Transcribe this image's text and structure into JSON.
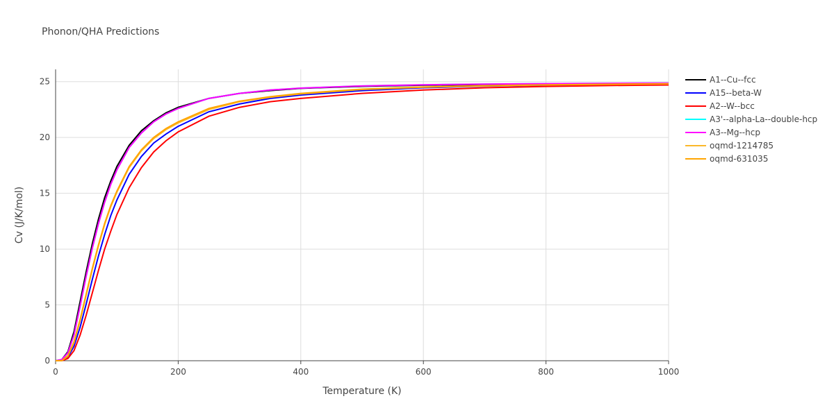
{
  "chart_data": {
    "type": "line",
    "title": "Phonon/QHA Predictions",
    "x_label": "Temperature (K)",
    "y_label": "Cv (J/K/mol)",
    "xlim": [
      0,
      1000
    ],
    "ylim": [
      0,
      26.1
    ],
    "xticks": [
      0,
      200,
      400,
      600,
      800,
      1000
    ],
    "yticks": [
      0,
      5,
      10,
      15,
      20,
      25
    ],
    "grid": true,
    "x": [
      0,
      10,
      20,
      30,
      40,
      50,
      60,
      70,
      80,
      90,
      100,
      120,
      140,
      160,
      180,
      200,
      250,
      300,
      350,
      400,
      500,
      600,
      700,
      800,
      900,
      1000
    ],
    "series": [
      {
        "name": "A1--Cu--fcc",
        "color": "#000000",
        "values": [
          0,
          0.1,
          0.8,
          2.6,
          5.3,
          8.0,
          10.5,
          12.7,
          14.6,
          16.1,
          17.4,
          19.3,
          20.6,
          21.5,
          22.2,
          22.7,
          23.5,
          23.95,
          24.2,
          24.4,
          24.58,
          24.68,
          24.74,
          24.78,
          24.81,
          24.83
        ]
      },
      {
        "name": "A15--beta-W",
        "color": "#0000ff",
        "values": [
          0,
          0,
          0.3,
          1.3,
          3.0,
          5.1,
          7.3,
          9.4,
          11.3,
          13.0,
          14.4,
          16.7,
          18.3,
          19.5,
          20.3,
          21.0,
          22.3,
          23.0,
          23.5,
          23.8,
          24.2,
          24.45,
          24.6,
          24.68,
          24.74,
          24.78
        ]
      },
      {
        "name": "A2--W--bcc",
        "color": "#ff0000",
        "values": [
          0,
          0,
          0.2,
          0.9,
          2.3,
          4.1,
          6.1,
          8.1,
          10.0,
          11.6,
          13.1,
          15.5,
          17.3,
          18.7,
          19.7,
          20.5,
          21.9,
          22.7,
          23.2,
          23.5,
          23.95,
          24.25,
          24.45,
          24.57,
          24.65,
          24.7
        ]
      },
      {
        "name": "A3'--alpha-La--double-hcp",
        "color": "#00ffff",
        "values": [
          0,
          0.1,
          0.7,
          2.3,
          4.9,
          7.6,
          10.1,
          12.3,
          14.2,
          15.8,
          17.1,
          19.1,
          20.4,
          21.4,
          22.1,
          22.6,
          23.5,
          23.95,
          24.25,
          24.42,
          24.62,
          24.72,
          24.78,
          24.82,
          24.85,
          24.87
        ]
      },
      {
        "name": "A3--Mg--hcp",
        "color": "#ff00ff",
        "values": [
          0,
          0.1,
          0.7,
          2.3,
          4.9,
          7.6,
          10.1,
          12.3,
          14.2,
          15.8,
          17.1,
          19.1,
          20.4,
          21.4,
          22.1,
          22.6,
          23.5,
          23.95,
          24.25,
          24.42,
          24.62,
          24.72,
          24.78,
          24.82,
          24.85,
          24.87
        ]
      },
      {
        "name": "oqmd-1214785",
        "color": "#fbb829",
        "values": [
          0,
          0,
          0.4,
          1.6,
          3.6,
          5.9,
          8.2,
          10.3,
          12.2,
          13.8,
          15.1,
          17.3,
          18.8,
          19.9,
          20.7,
          21.3,
          22.5,
          23.2,
          23.6,
          23.9,
          24.3,
          24.5,
          24.62,
          24.7,
          24.76,
          24.8
        ]
      },
      {
        "name": "oqmd-631035",
        "color": "#ffa500",
        "values": [
          0,
          0,
          0.45,
          1.7,
          3.7,
          6.0,
          8.3,
          10.4,
          12.3,
          13.9,
          15.2,
          17.4,
          18.9,
          20.0,
          20.8,
          21.4,
          22.6,
          23.25,
          23.65,
          23.95,
          24.33,
          24.52,
          24.64,
          24.72,
          24.77,
          24.81
        ]
      }
    ]
  }
}
